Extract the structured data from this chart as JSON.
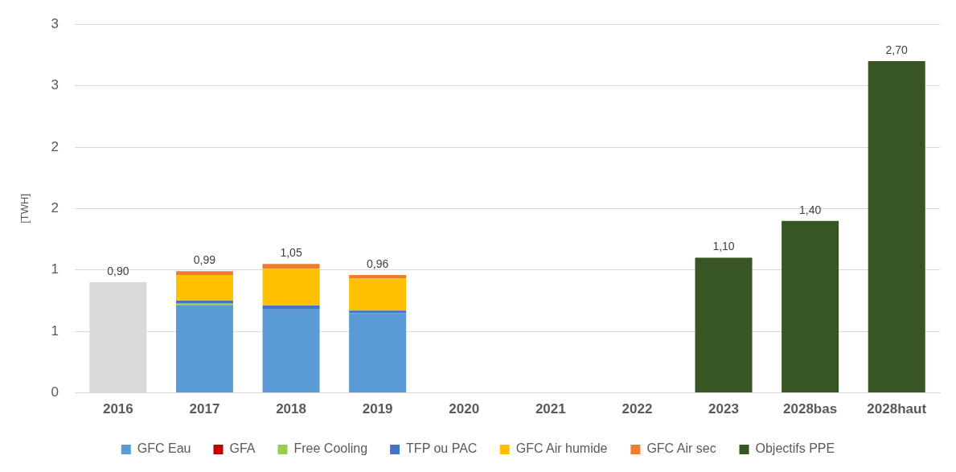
{
  "chart_data": {
    "type": "bar",
    "stacked": true,
    "ylabel": "[TWH]",
    "categories": [
      "2016",
      "2017",
      "2018",
      "2019",
      "2020",
      "2021",
      "2022",
      "2023",
      "2028bas",
      "2028haut"
    ],
    "series": [
      {
        "color": "#d9d9d9",
        "values": [
          0.9,
          null,
          null,
          null,
          null,
          null,
          null,
          null,
          null,
          null
        ]
      },
      {
        "name": "GFC Eau",
        "color": "#5b9bd5",
        "values": [
          null,
          0.71,
          0.68,
          0.65,
          null,
          null,
          null,
          null,
          null,
          null
        ]
      },
      {
        "name": "GFA",
        "color": "#c00000",
        "values": [
          null,
          null,
          null,
          null,
          null,
          null,
          null,
          null,
          null,
          null
        ]
      },
      {
        "name": "Free Cooling",
        "color": "#92d050",
        "values": [
          null,
          0.02,
          null,
          null,
          null,
          null,
          null,
          null,
          null,
          null
        ]
      },
      {
        "name": "TFP ou PAC",
        "color": "#4472c4",
        "values": [
          null,
          0.02,
          0.03,
          0.02,
          null,
          null,
          null,
          null,
          null,
          null
        ]
      },
      {
        "name": "GFC Air humide",
        "color": "#ffc000",
        "values": [
          null,
          0.21,
          0.3,
          0.26,
          null,
          null,
          null,
          null,
          null,
          null
        ]
      },
      {
        "name": "GFC Air sec",
        "color": "#ed7d31",
        "values": [
          null,
          0.03,
          0.04,
          0.03,
          null,
          null,
          null,
          null,
          null,
          null
        ]
      },
      {
        "name": "Objectifs PPE",
        "color": "#375623",
        "values": [
          null,
          null,
          null,
          null,
          null,
          null,
          null,
          1.1,
          1.4,
          2.7
        ]
      }
    ],
    "totals": [
      "0,90",
      "0,99",
      "1,05",
      "0,96",
      null,
      null,
      null,
      "1,10",
      "1,40",
      "2,70"
    ],
    "ylim": [
      0,
      3
    ],
    "yticks": [
      0,
      {
        "value": 0.5,
        "label": "1"
      },
      1,
      {
        "value": 1.5,
        "label": "2"
      },
      2,
      {
        "value": 2.5,
        "label": "3"
      },
      3
    ],
    "grid": "y",
    "legend": "bottom"
  }
}
